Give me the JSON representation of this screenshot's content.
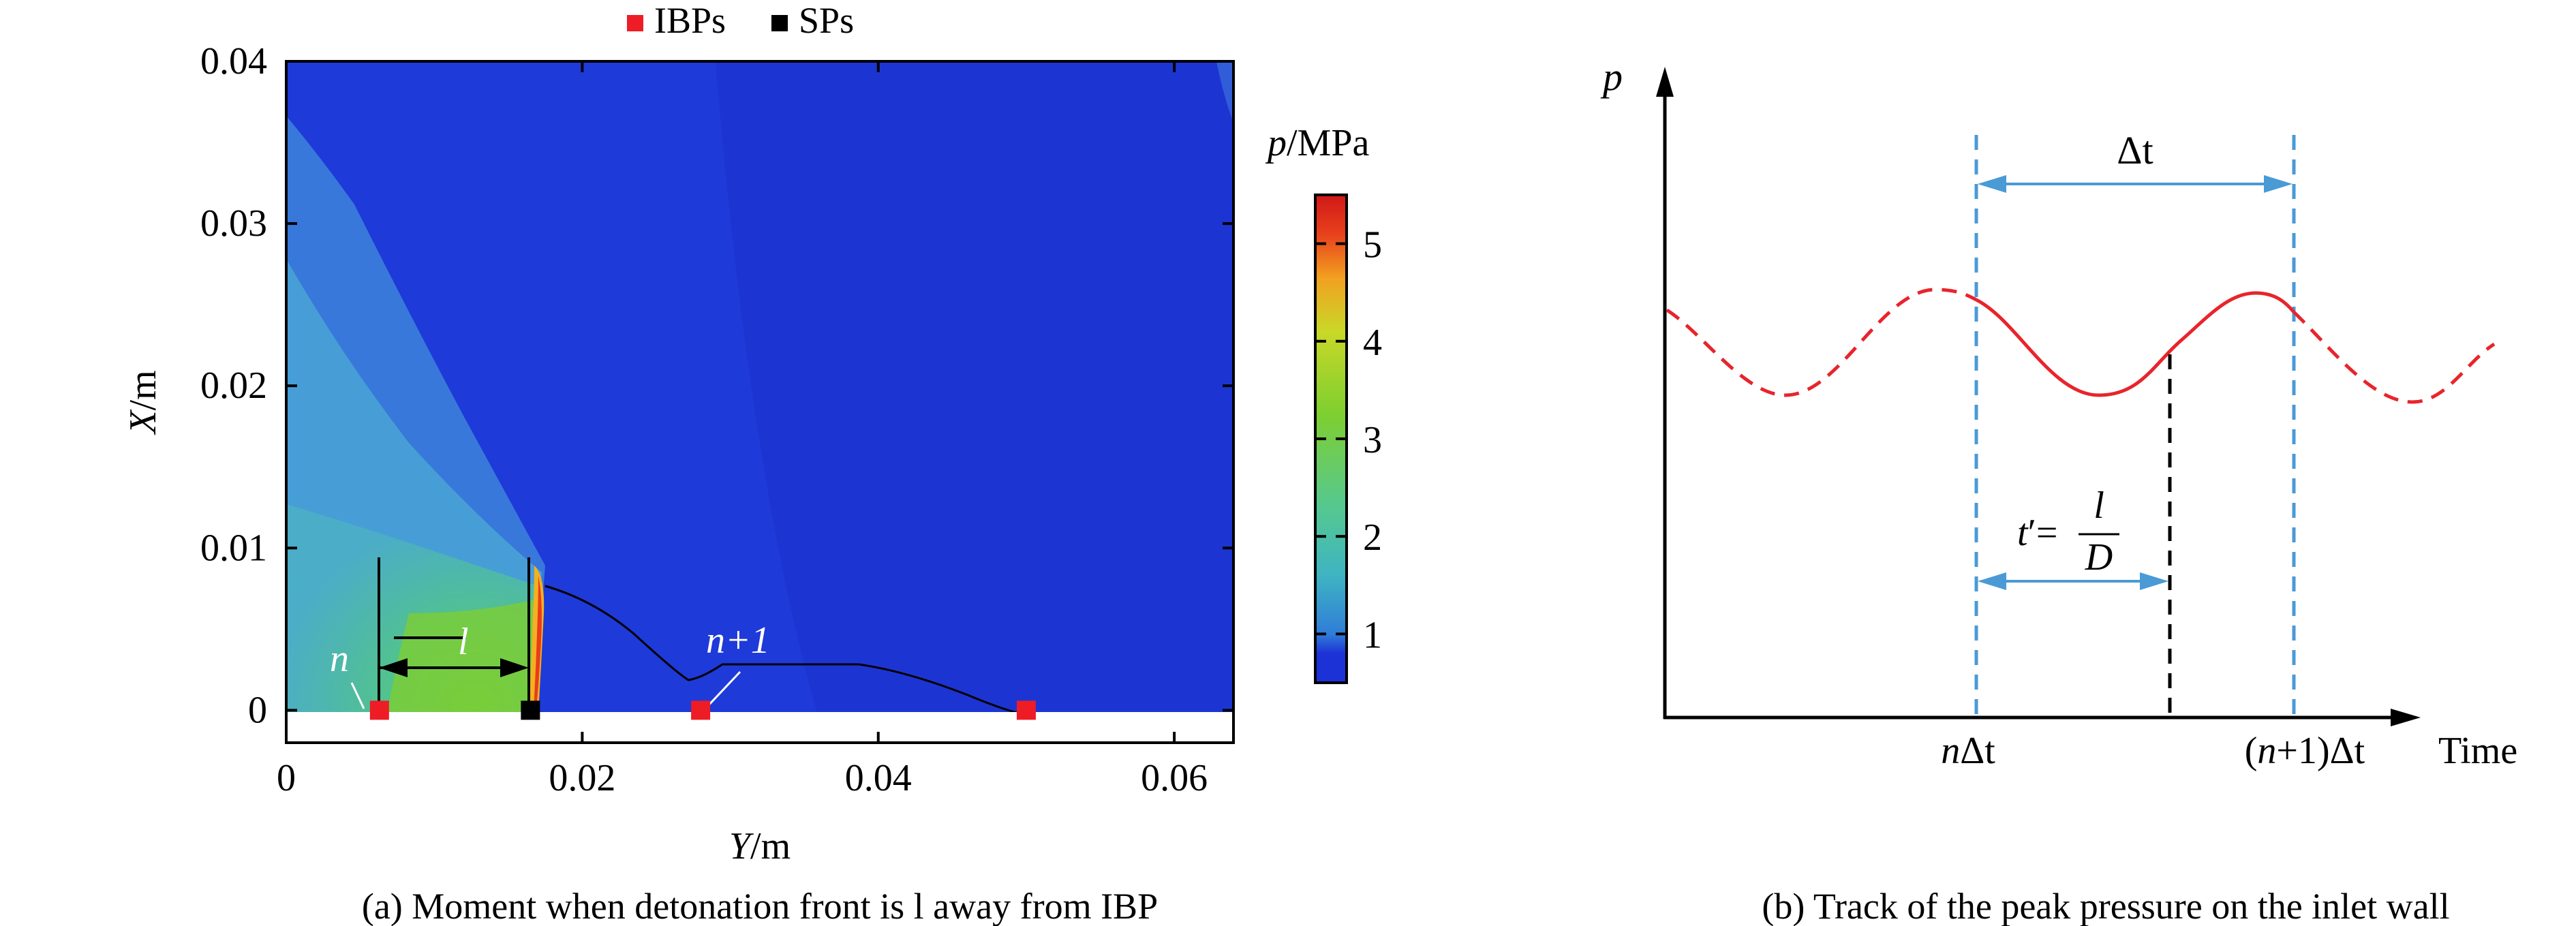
{
  "legend": {
    "items": [
      {
        "label": "IBPs",
        "color": "#ee1c25"
      },
      {
        "label": "SPs",
        "color": "#000000"
      }
    ]
  },
  "panel_a": {
    "caption": "(a) Moment when detonation front is l away from IBP",
    "chart_data": {
      "type": "heatmap",
      "title": "",
      "xlabel_var": "Y",
      "xlabel_unit": "/m",
      "ylabel_var": "X",
      "ylabel_unit": "/m",
      "xlim": [
        0,
        0.064
      ],
      "ylim": [
        -0.002,
        0.04
      ],
      "xticks": [
        0,
        0.02,
        0.04,
        0.06
      ],
      "xtick_labels": [
        "0",
        "0.02",
        "0.04",
        "0.06"
      ],
      "yticks": [
        0,
        0.01,
        0.02,
        0.03,
        0.04
      ],
      "ytick_labels": [
        "0",
        "0.01",
        "0.02",
        "0.03",
        "0.04"
      ],
      "ibp_points": [
        {
          "y": 0.0063,
          "x": 0
        },
        {
          "y": 0.028,
          "x": 0
        },
        {
          "y": 0.05,
          "x": 0
        }
      ],
      "sp_points": [
        {
          "y": 0.0165,
          "x": 0
        }
      ],
      "annotations": [
        {
          "text": "n",
          "y": 0.0063,
          "x": 0
        },
        {
          "text": "l"
        },
        {
          "text": "n+1",
          "y": 0.028,
          "x": 0
        }
      ],
      "colorbar": {
        "label_var": "p",
        "label_unit": "/MPa",
        "min": 0.5,
        "max": 5.5,
        "ticks": [
          1,
          2,
          3,
          4,
          5
        ],
        "tick_labels": [
          "1",
          "2",
          "3",
          "4",
          "5"
        ],
        "colors": [
          "#1c32d6",
          "#2f7dd8",
          "#3fb4c2",
          "#55c890",
          "#7ecf30",
          "#c9d828",
          "#f2a020",
          "#e8401c",
          "#d01818"
        ]
      }
    }
  },
  "panel_b": {
    "caption": "(b) Track of the peak pressure on the inlet wall",
    "chart_data": {
      "type": "line",
      "title": "",
      "ylabel": "p",
      "xlabel": "Time",
      "grid": false,
      "x_ticks": [
        {
          "label_pre": "n",
          "label_post": "Δt"
        },
        {
          "label_pre": "(",
          "label_var": "n",
          "label_post": "+1)Δt"
        }
      ],
      "annotations": {
        "delta_t": "Δt",
        "t_prime_var": "t",
        "t_prime_sym": "′=",
        "numerator": "l",
        "denominator": "D"
      },
      "series": [
        {
          "style": "dashed",
          "color": "#e8242c"
        },
        {
          "style": "solid",
          "color": "#e8242c"
        },
        {
          "style": "dashed",
          "color": "#e8242c"
        }
      ],
      "guide_color": "#4a9ad6"
    }
  }
}
